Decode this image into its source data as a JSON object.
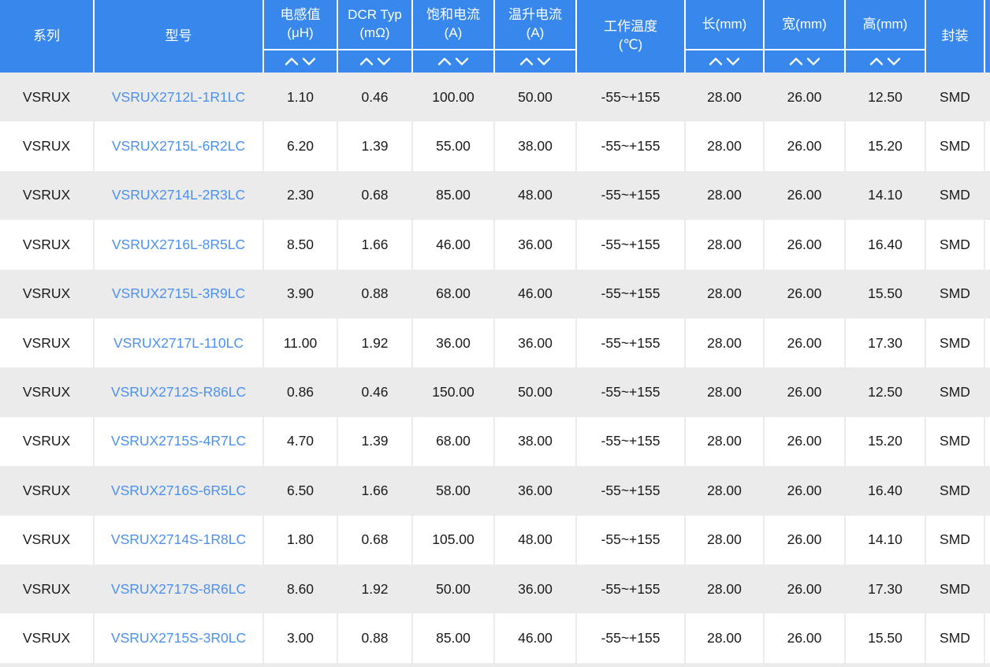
{
  "colors": {
    "header_bg": "#3787ec",
    "header_text": "#ffffff",
    "link_blue": "#4b90f3",
    "row_alt_gray": "#ebebeb",
    "body_text": "#1a1a1a"
  },
  "table": {
    "columns": [
      {
        "key": "series",
        "label": "系列",
        "unit": "",
        "sortable": false
      },
      {
        "key": "model",
        "label": "型号",
        "unit": "",
        "sortable": false
      },
      {
        "key": "inductance",
        "label": "电感值",
        "unit": "(μH)",
        "sortable": true
      },
      {
        "key": "dcr-typ",
        "label": "DCR Typ",
        "unit": "(mΩ)",
        "sortable": true
      },
      {
        "key": "saturation-current",
        "label": "饱和电流",
        "unit": "(A)",
        "sortable": true
      },
      {
        "key": "temp-rise-current",
        "label": "温升电流",
        "unit": "(A)",
        "sortable": true
      },
      {
        "key": "operating-temp",
        "label": "工作温度",
        "unit": "(℃)",
        "sortable": false
      },
      {
        "key": "length",
        "label": "长(mm)",
        "unit": "",
        "sortable": true
      },
      {
        "key": "width",
        "label": "宽(mm)",
        "unit": "",
        "sortable": true
      },
      {
        "key": "height",
        "label": "高(mm)",
        "unit": "",
        "sortable": true
      },
      {
        "key": "package",
        "label": "封装",
        "unit": "",
        "sortable": false
      }
    ],
    "sort_icon": "chevron-up-down",
    "rows": [
      [
        "VSRUX",
        "VSRUX2712L-1R1LC",
        "1.10",
        "0.46",
        "100.00",
        "50.00",
        "-55~+155",
        "28.00",
        "26.00",
        "12.50",
        "SMD"
      ],
      [
        "VSRUX",
        "VSRUX2715L-6R2LC",
        "6.20",
        "1.39",
        "55.00",
        "38.00",
        "-55~+155",
        "28.00",
        "26.00",
        "15.20",
        "SMD"
      ],
      [
        "VSRUX",
        "VSRUX2714L-2R3LC",
        "2.30",
        "0.68",
        "85.00",
        "48.00",
        "-55~+155",
        "28.00",
        "26.00",
        "14.10",
        "SMD"
      ],
      [
        "VSRUX",
        "VSRUX2716L-8R5LC",
        "8.50",
        "1.66",
        "46.00",
        "36.00",
        "-55~+155",
        "28.00",
        "26.00",
        "16.40",
        "SMD"
      ],
      [
        "VSRUX",
        "VSRUX2715L-3R9LC",
        "3.90",
        "0.88",
        "68.00",
        "46.00",
        "-55~+155",
        "28.00",
        "26.00",
        "15.50",
        "SMD"
      ],
      [
        "VSRUX",
        "VSRUX2717L-110LC",
        "11.00",
        "1.92",
        "36.00",
        "36.00",
        "-55~+155",
        "28.00",
        "26.00",
        "17.30",
        "SMD"
      ],
      [
        "VSRUX",
        "VSRUX2712S-R86LC",
        "0.86",
        "0.46",
        "150.00",
        "50.00",
        "-55~+155",
        "28.00",
        "26.00",
        "12.50",
        "SMD"
      ],
      [
        "VSRUX",
        "VSRUX2715S-4R7LC",
        "4.70",
        "1.39",
        "68.00",
        "38.00",
        "-55~+155",
        "28.00",
        "26.00",
        "15.20",
        "SMD"
      ],
      [
        "VSRUX",
        "VSRUX2716S-6R5LC",
        "6.50",
        "1.66",
        "58.00",
        "36.00",
        "-55~+155",
        "28.00",
        "26.00",
        "16.40",
        "SMD"
      ],
      [
        "VSRUX",
        "VSRUX2714S-1R8LC",
        "1.80",
        "0.68",
        "105.00",
        "48.00",
        "-55~+155",
        "28.00",
        "26.00",
        "14.10",
        "SMD"
      ],
      [
        "VSRUX",
        "VSRUX2717S-8R6LC",
        "8.60",
        "1.92",
        "50.00",
        "36.00",
        "-55~+155",
        "28.00",
        "26.00",
        "17.30",
        "SMD"
      ],
      [
        "VSRUX",
        "VSRUX2715S-3R0LC",
        "3.00",
        "0.88",
        "85.00",
        "46.00",
        "-55~+155",
        "28.00",
        "26.00",
        "15.50",
        "SMD"
      ]
    ]
  }
}
